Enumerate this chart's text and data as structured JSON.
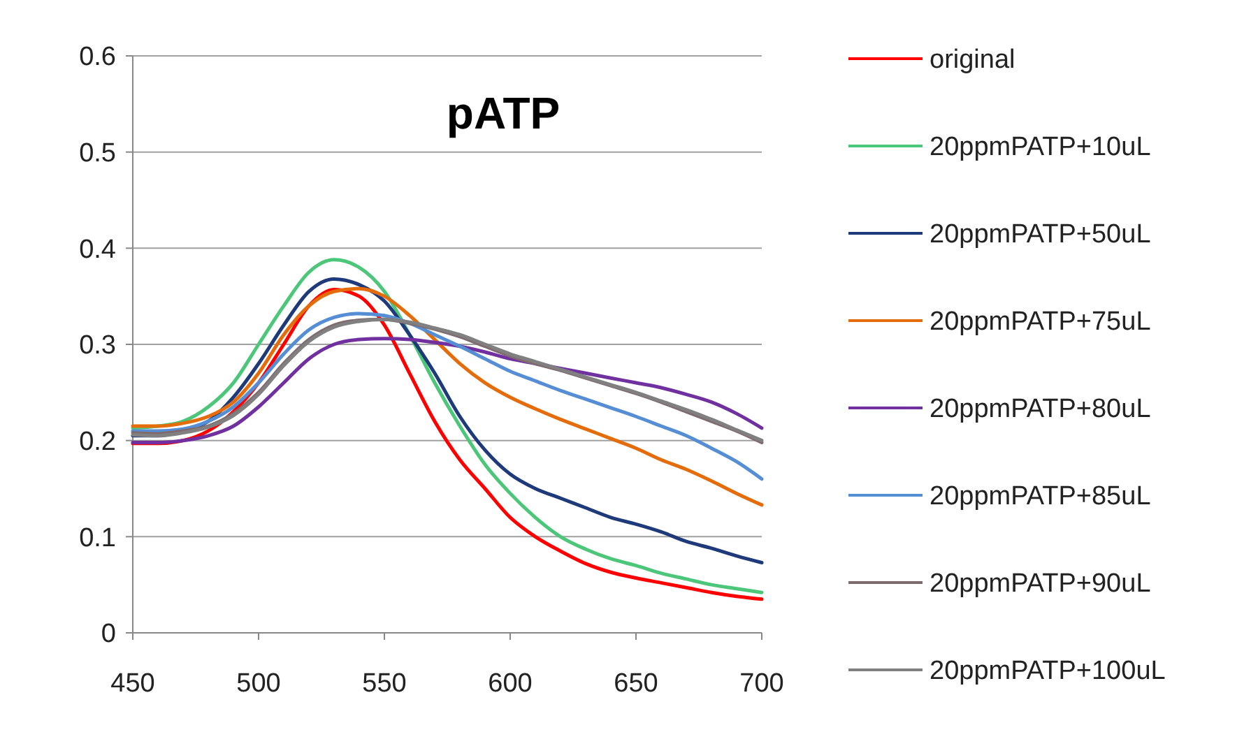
{
  "chart_data": {
    "type": "line",
    "title": "pATP",
    "x": [
      450,
      460,
      470,
      480,
      490,
      500,
      510,
      520,
      530,
      540,
      550,
      560,
      570,
      580,
      590,
      600,
      610,
      620,
      630,
      640,
      650,
      660,
      670,
      680,
      690,
      700
    ],
    "xlim": [
      450,
      700
    ],
    "xticks": [
      450,
      500,
      550,
      600,
      650,
      700
    ],
    "ylim": [
      0,
      0.6
    ],
    "yticks": [
      0,
      0.1,
      0.2,
      0.3,
      0.4,
      0.5,
      0.6
    ],
    "grid": "y",
    "legend": "right",
    "marker": "none",
    "line_style": "solid",
    "series": [
      {
        "name": "original",
        "color": "#ff0000",
        "values": [
          0.197,
          0.197,
          0.2,
          0.21,
          0.23,
          0.26,
          0.3,
          0.34,
          0.357,
          0.35,
          0.32,
          0.27,
          0.22,
          0.18,
          0.15,
          0.12,
          0.1,
          0.085,
          0.072,
          0.063,
          0.057,
          0.052,
          0.047,
          0.042,
          0.038,
          0.035
        ]
      },
      {
        "name": "20ppmPATP+10uL",
        "color": "#4cc679",
        "values": [
          0.213,
          0.215,
          0.22,
          0.235,
          0.26,
          0.3,
          0.34,
          0.375,
          0.388,
          0.38,
          0.355,
          0.31,
          0.26,
          0.215,
          0.175,
          0.145,
          0.12,
          0.1,
          0.087,
          0.077,
          0.07,
          0.062,
          0.056,
          0.05,
          0.046,
          0.042
        ]
      },
      {
        "name": "20ppmPATP+50uL",
        "color": "#1f3a7a",
        "values": [
          0.205,
          0.205,
          0.21,
          0.22,
          0.245,
          0.28,
          0.32,
          0.355,
          0.368,
          0.362,
          0.345,
          0.31,
          0.27,
          0.225,
          0.19,
          0.165,
          0.15,
          0.14,
          0.13,
          0.12,
          0.113,
          0.105,
          0.095,
          0.088,
          0.08,
          0.073
        ]
      },
      {
        "name": "20ppmPATP+75uL",
        "color": "#e46c0a",
        "values": [
          0.215,
          0.215,
          0.218,
          0.225,
          0.24,
          0.27,
          0.31,
          0.34,
          0.355,
          0.358,
          0.35,
          0.33,
          0.305,
          0.28,
          0.26,
          0.245,
          0.233,
          0.222,
          0.212,
          0.202,
          0.192,
          0.18,
          0.17,
          0.158,
          0.145,
          0.133
        ]
      },
      {
        "name": "20ppmPATP+80uL",
        "color": "#7030a0",
        "values": [
          0.198,
          0.198,
          0.2,
          0.205,
          0.215,
          0.235,
          0.26,
          0.285,
          0.3,
          0.305,
          0.306,
          0.305,
          0.302,
          0.298,
          0.292,
          0.285,
          0.28,
          0.275,
          0.27,
          0.265,
          0.26,
          0.255,
          0.248,
          0.24,
          0.228,
          0.213
        ]
      },
      {
        "name": "20ppmPATP+85uL",
        "color": "#558ed5",
        "values": [
          0.21,
          0.21,
          0.212,
          0.22,
          0.235,
          0.26,
          0.29,
          0.315,
          0.328,
          0.332,
          0.33,
          0.322,
          0.31,
          0.298,
          0.285,
          0.272,
          0.262,
          0.252,
          0.243,
          0.234,
          0.225,
          0.215,
          0.205,
          0.192,
          0.178,
          0.16
        ]
      },
      {
        "name": "20ppmPATP+90uL",
        "color": "#7f6a6e",
        "values": [
          0.208,
          0.207,
          0.21,
          0.215,
          0.228,
          0.25,
          0.28,
          0.305,
          0.32,
          0.325,
          0.326,
          0.322,
          0.316,
          0.308,
          0.298,
          0.288,
          0.28,
          0.273,
          0.265,
          0.257,
          0.249,
          0.24,
          0.23,
          0.22,
          0.21,
          0.198
        ]
      },
      {
        "name": "20ppmPATP+100uL",
        "color": "#808080",
        "values": [
          0.206,
          0.205,
          0.208,
          0.214,
          0.226,
          0.248,
          0.278,
          0.303,
          0.318,
          0.324,
          0.326,
          0.323,
          0.317,
          0.31,
          0.3,
          0.29,
          0.282,
          0.274,
          0.266,
          0.258,
          0.25,
          0.241,
          0.232,
          0.222,
          0.211,
          0.2
        ]
      }
    ]
  }
}
